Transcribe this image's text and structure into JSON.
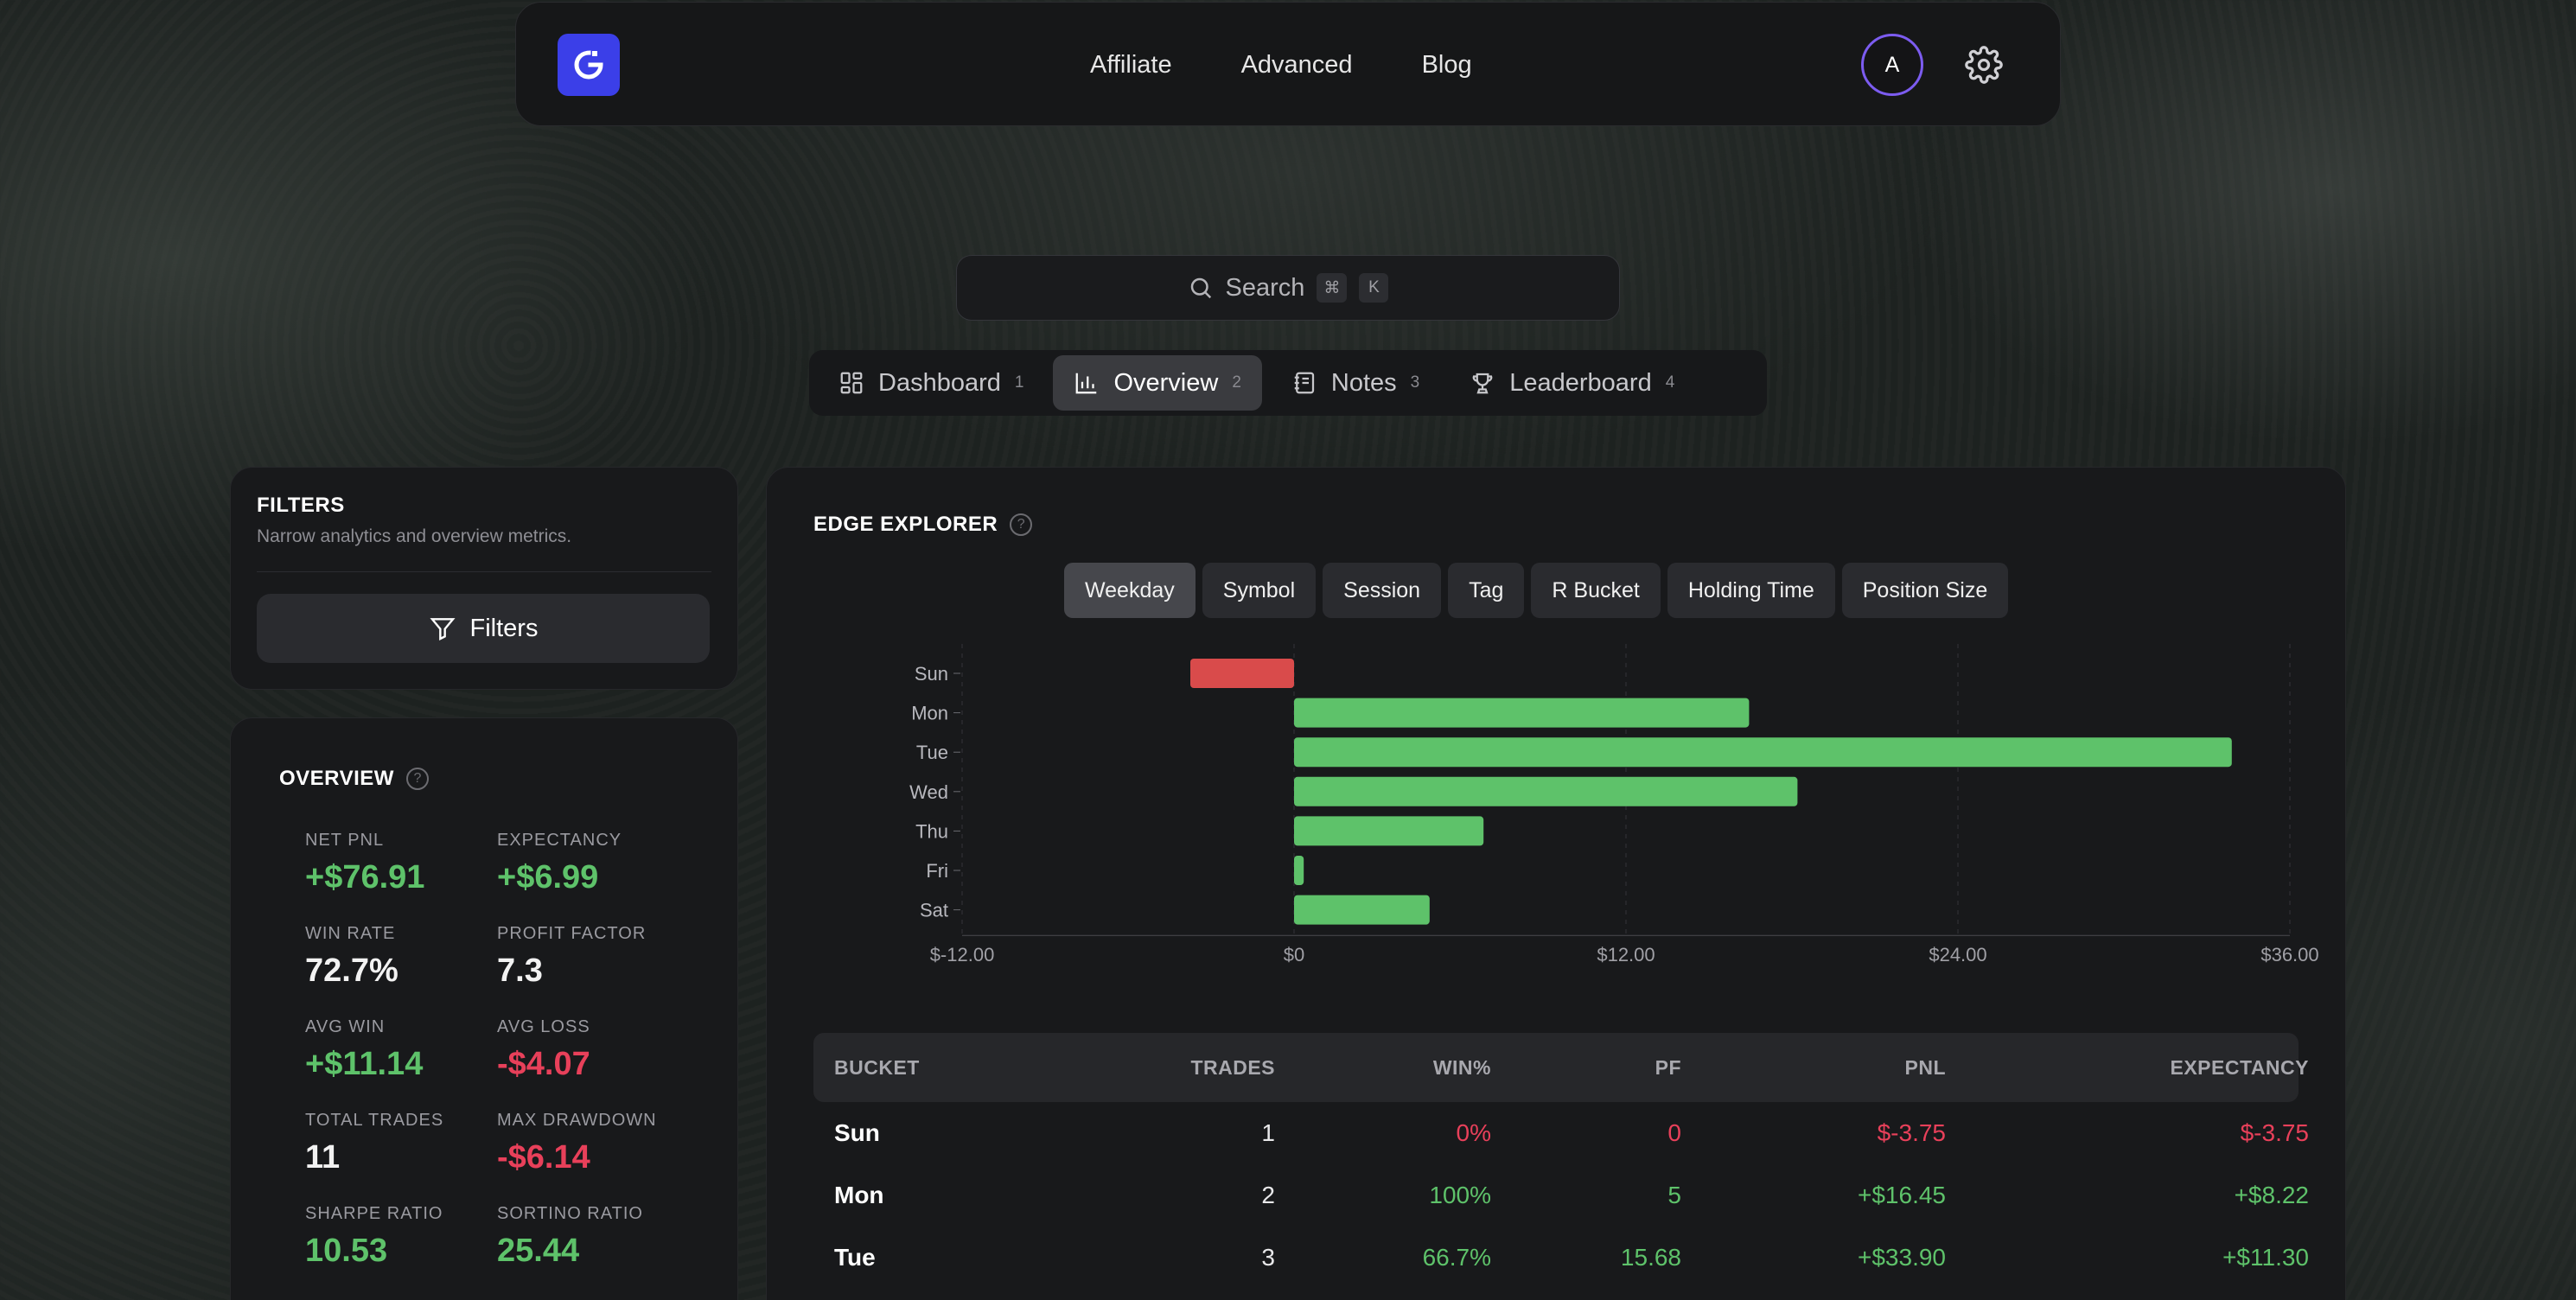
{
  "nav": {
    "links": [
      "Affiliate",
      "Advanced",
      "Blog"
    ],
    "avatar_initial": "A"
  },
  "search": {
    "label": "Search",
    "shortcut": [
      "⌘",
      "K"
    ]
  },
  "tabs": [
    {
      "label": "Dashboard",
      "num": "1",
      "icon": "dashboard-icon"
    },
    {
      "label": "Overview",
      "num": "2",
      "icon": "bar-chart-icon",
      "active": true
    },
    {
      "label": "Notes",
      "num": "3",
      "icon": "notebook-icon"
    },
    {
      "label": "Leaderboard",
      "num": "4",
      "icon": "trophy-icon"
    }
  ],
  "filters": {
    "title": "FILTERS",
    "subtitle": "Narrow analytics and overview metrics.",
    "button": "Filters"
  },
  "overview": {
    "title": "OVERVIEW",
    "metrics": [
      {
        "label": "NET PNL",
        "value": "+$76.91",
        "tone": "pos"
      },
      {
        "label": "EXPECTANCY",
        "value": "+$6.99",
        "tone": "pos"
      },
      {
        "label": "WIN RATE",
        "value": "72.7%",
        "tone": "neutral"
      },
      {
        "label": "PROFIT FACTOR",
        "value": "7.3",
        "tone": "neutral"
      },
      {
        "label": "AVG WIN",
        "value": "+$11.14",
        "tone": "pos"
      },
      {
        "label": "AVG LOSS",
        "value": "-$4.07",
        "tone": "neg"
      },
      {
        "label": "TOTAL TRADES",
        "value": "11",
        "tone": "neutral"
      },
      {
        "label": "MAX DRAWDOWN",
        "value": "-$6.14",
        "tone": "neg"
      },
      {
        "label": "SHARPE RATIO",
        "value": "10.53",
        "tone": "pos"
      },
      {
        "label": "SORTINO RATIO",
        "value": "25.44",
        "tone": "pos"
      }
    ]
  },
  "edge": {
    "title": "EDGE EXPLORER",
    "pills": [
      "Weekday",
      "Symbol",
      "Session",
      "Tag",
      "R Bucket",
      "Holding Time",
      "Position Size"
    ],
    "active_pill": "Weekday"
  },
  "chart_data": {
    "type": "bar",
    "orientation": "horizontal",
    "categories": [
      "Sun",
      "Mon",
      "Tue",
      "Wed",
      "Thu",
      "Fri",
      "Sat"
    ],
    "values": [
      -3.75,
      16.45,
      33.9,
      18.2,
      6.85,
      0.35,
      4.9
    ],
    "xlim": [
      -12,
      36
    ],
    "xticks": [
      "$-12.00",
      "$0",
      "$12.00",
      "$24.00",
      "$36.00"
    ],
    "xtick_values": [
      -12,
      0,
      12,
      24,
      36
    ],
    "positive_color": "#5ec26a",
    "negative_color": "#d94b4b",
    "grid": "vertical dashed"
  },
  "table": {
    "headers": [
      "BUCKET",
      "TRADES",
      "WIN%",
      "PF",
      "PNL",
      "EXPECTANCY"
    ],
    "rows": [
      {
        "bucket": "Sun",
        "trades": "1",
        "win": "0%",
        "pf": "0",
        "pnl": "$-3.75",
        "exp": "$-3.75",
        "tone": "neg"
      },
      {
        "bucket": "Mon",
        "trades": "2",
        "win": "100%",
        "pf": "5",
        "pnl": "+$16.45",
        "exp": "+$8.22",
        "tone": "pos"
      },
      {
        "bucket": "Tue",
        "trades": "3",
        "win": "66.7%",
        "pf": "15.68",
        "pnl": "+$33.90",
        "exp": "+$11.30",
        "tone": "pos"
      }
    ]
  },
  "colors": {
    "accent": "#3b3fe8",
    "positive": "#5ec26a",
    "negative": "#e8405a",
    "avatar_ring": "#7c5cf0"
  }
}
